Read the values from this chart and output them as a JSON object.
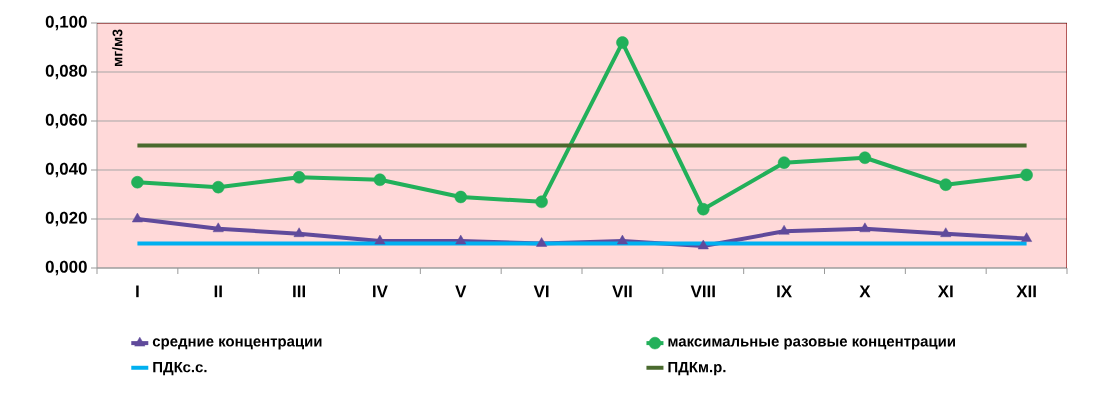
{
  "chart_data": {
    "type": "line",
    "ylabel": "мг/м3",
    "categories": [
      "I",
      "II",
      "III",
      "IV",
      "V",
      "VI",
      "VII",
      "VIII",
      "IX",
      "X",
      "XI",
      "XII"
    ],
    "series": [
      {
        "name": "средние концентрации",
        "color": "#604a9b",
        "marker": "triangle",
        "values": [
          0.02,
          0.016,
          0.014,
          0.011,
          0.011,
          0.01,
          0.011,
          0.009,
          0.015,
          0.016,
          0.014,
          0.012
        ]
      },
      {
        "name": "максимальные разовые концентрации",
        "color": "#22b05a",
        "marker": "circle",
        "values": [
          0.035,
          0.033,
          0.037,
          0.036,
          0.029,
          0.027,
          0.092,
          0.024,
          0.043,
          0.045,
          0.034,
          0.038
        ]
      },
      {
        "name": "ПДКс.с.",
        "color": "#00b0f0",
        "marker": "none",
        "values": [
          0.01,
          0.01,
          0.01,
          0.01,
          0.01,
          0.01,
          0.01,
          0.01,
          0.01,
          0.01,
          0.01,
          0.01
        ]
      },
      {
        "name": "ПДКм.р.",
        "color": "#4a6a2e",
        "marker": "none",
        "values": [
          0.05,
          0.05,
          0.05,
          0.05,
          0.05,
          0.05,
          0.05,
          0.05,
          0.05,
          0.05,
          0.05,
          0.05
        ]
      }
    ],
    "ylim": [
      0,
      0.1
    ],
    "yticks": [
      {
        "value": 0,
        "label": "0,000"
      },
      {
        "value": 0.02,
        "label": "0,020"
      },
      {
        "value": 0.04,
        "label": "0,040"
      },
      {
        "value": 0.06,
        "label": "0,060"
      },
      {
        "value": 0.08,
        "label": "0,080"
      },
      {
        "value": 0.1,
        "label": "0,100"
      }
    ],
    "grid": "y",
    "legend": "bottom"
  }
}
